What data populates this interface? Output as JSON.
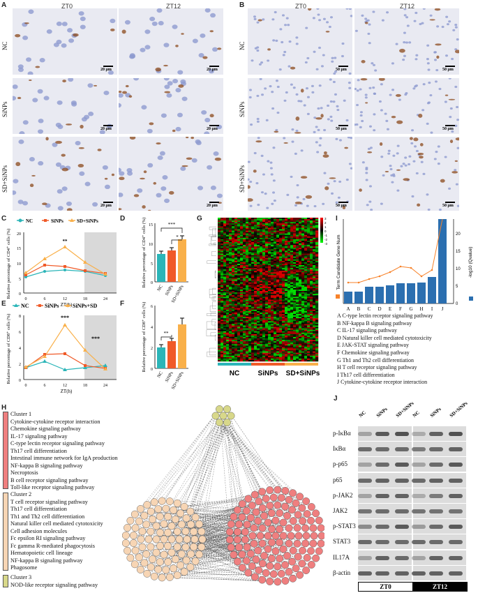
{
  "panels": {
    "A": "A",
    "B": "B",
    "C": "C",
    "D": "D",
    "E": "E",
    "F": "F",
    "G": "G",
    "H": "H",
    "I": "I",
    "J": "J"
  },
  "micro": {
    "col_zt0": "ZT0",
    "col_zt12": "ZT12",
    "row_nc": "NC",
    "row_sinps": "SiNPs",
    "row_sdsinps": "SD+SiNPs",
    "scale_a": "20 μm",
    "scale_b": "50 μm"
  },
  "chart_c": {
    "legend": [
      "NC",
      "SiNPs",
      "SD+SiNPs"
    ],
    "ylabel": "Relative percentage of CD4⁺ cells (%)",
    "xlabel": "ZT(h)",
    "xticks": [
      "0",
      "6",
      "12",
      "18",
      "24"
    ],
    "yticks": [
      "0",
      "5",
      "10",
      "15",
      "20"
    ],
    "annotation": "**",
    "colors": [
      "#2bb5b8",
      "#f05a28",
      "#f9b04a"
    ]
  },
  "chart_d": {
    "ylabel": "Relative percentage of CD4⁺ cells (%)",
    "categories": [
      "NC",
      "SiNPs",
      "SD+SiNPs"
    ],
    "yticks": [
      "0",
      "5",
      "10",
      "15"
    ],
    "sig": [
      "***",
      "*"
    ]
  },
  "chart_e": {
    "legend": [
      "NC",
      "SiNPs",
      "SiNPs+SD"
    ],
    "ylabel": "Relative percentage of CD8⁺ cells (%)",
    "xlabel": "ZT(h)",
    "xticks": [
      "0",
      "6",
      "12",
      "18",
      "24"
    ],
    "yticks": [
      "0",
      "2",
      "4",
      "6",
      "8"
    ],
    "annotations": [
      "***",
      "***"
    ]
  },
  "chart_f": {
    "ylabel": "Relative percentage of CD8⁺ cells (%)",
    "categories": [
      "NC",
      "SiNPs",
      "SD+SiNPs"
    ],
    "yticks": [
      "0",
      "2",
      "4",
      "6"
    ],
    "sig": "**"
  },
  "heatmap": {
    "scale": [
      "3",
      "2",
      "1",
      "0",
      "-1",
      "-2",
      "-3"
    ],
    "groups": [
      "NC",
      "SiNPs",
      "SD+SiNPs"
    ]
  },
  "chart_i": {
    "ylabel_left": "Term Candidate Gene Num",
    "ylabel_right": "-log10 (Qvalue)",
    "yticks_right": [
      "0",
      "5",
      "10",
      "15",
      "20"
    ],
    "categories": [
      "A",
      "B",
      "C",
      "D",
      "E",
      "F",
      "G",
      "H",
      "I",
      "J"
    ],
    "legend": [
      "A C-type lectin receptor signaling pathway",
      "B NF-kappa B signaling pathway",
      "C IL-17 signaling pathway",
      "D Natural killer cell mediated cytotoxicity",
      "E JAK-STAT signaling pathway",
      "F Chemokine signaling pathway",
      "G Th1 and Th2 cell differentiation",
      "H T cell receptor signaling pathway",
      "I Th17 cell differentiation",
      "J Cytokine-cytokine receptor interaction"
    ]
  },
  "clusters": [
    {
      "title": "Cluster 1",
      "color": "#ef7f7f",
      "items": [
        "Cytokine-cytokine receptor interaction",
        "Chemokine signaling pathway",
        "IL-17 signaling pathway",
        "C-type lectin receptor signaling pathway",
        "Th17 cell differentiation",
        "Intestinal immune network for IgA production",
        "NF-kappa B signaling pathway",
        "Necroptosis",
        "B cell receptor signaling pathway",
        "Toll-like receptor signaling pathway"
      ]
    },
    {
      "title": "Cluster 2",
      "color": "#f7d5b4",
      "items": [
        "T cell receptor signaling pathway",
        "Th17 cell differentiation",
        "Th1 and Th2 cell differentiation",
        "Natural killer cell mediated cytotoxicity",
        "Cell adhesion molecules",
        "Fc epsilon RI signaling pathway",
        "Fc gamma R-mediated phagocytosis",
        "Hematopoietic cell lineage",
        "NF-kappa B signaling pathway",
        "Phagosome"
      ]
    },
    {
      "title": "Cluster 3",
      "color": "#d8d88a",
      "items": [
        "NOD-like receptor signaling pathway"
      ]
    }
  ],
  "western": {
    "lanes": [
      "NC",
      "SiNPs",
      "SD+SiNPs",
      "NC",
      "SiNPs",
      "SD+SiNPs"
    ],
    "proteins": [
      "p-IκBα",
      "IκBα",
      "p-p65",
      "p65",
      "p-JAK2",
      "JAK2",
      "p-STAT3",
      "STAT3",
      "IL17A",
      "β-actin"
    ],
    "groups": [
      "ZT0",
      "ZT12"
    ]
  }
}
